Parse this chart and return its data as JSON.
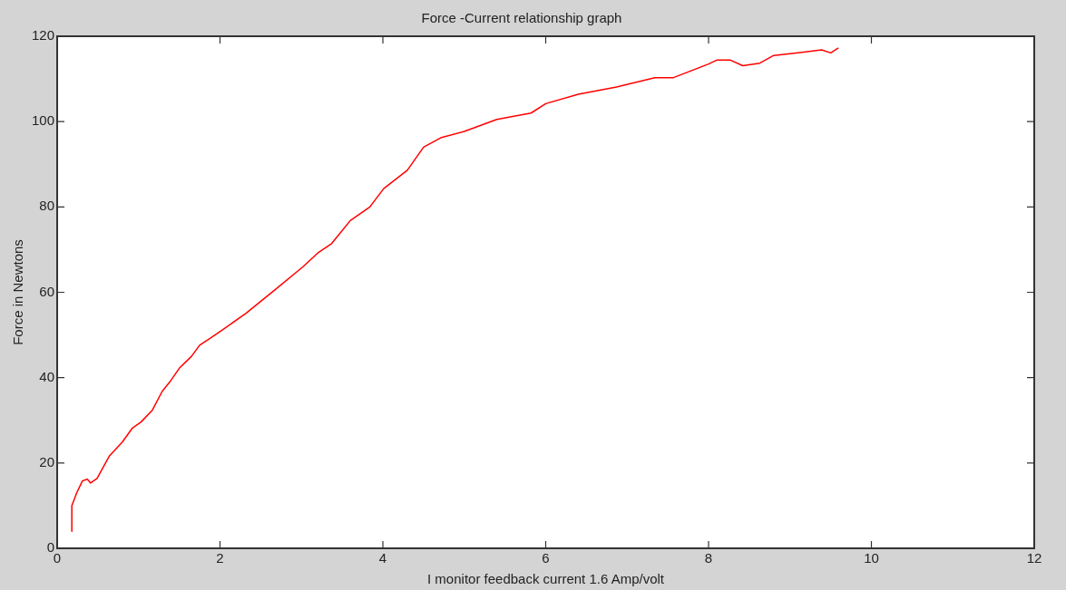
{
  "chart_data": {
    "type": "line",
    "title": "Force -Current relationship graph",
    "xlabel": "I monitor feedback current 1.6 Amp/volt",
    "ylabel": "Force in Newtons",
    "xlim": [
      0,
      12
    ],
    "xticks": [
      0,
      2,
      4,
      6,
      8,
      10,
      12
    ],
    "ylim": [
      0,
      120
    ],
    "yticks": [
      0,
      20,
      40,
      60,
      80,
      100,
      120
    ],
    "grid": false,
    "legend": false,
    "marker": "none",
    "line_style": "solid",
    "series": [
      {
        "color": "#ff0000",
        "x": [
          0.18,
          0.18,
          0.24,
          0.31,
          0.37,
          0.41,
          0.49,
          0.64,
          0.8,
          0.92,
          1.03,
          1.17,
          1.29,
          1.38,
          1.5,
          1.65,
          1.75,
          1.86,
          2.0,
          2.32,
          2.67,
          3.02,
          3.2,
          3.37,
          3.6,
          3.84,
          4.01,
          4.3,
          4.5,
          4.71,
          5.0,
          5.4,
          5.82,
          6.0,
          6.4,
          6.87,
          7.34,
          7.57,
          8.0,
          8.1,
          8.27,
          8.42,
          8.63,
          8.8,
          9.1,
          9.39,
          9.5,
          9.59
        ],
        "values": [
          4,
          10,
          13,
          15.8,
          16.2,
          15.3,
          16.4,
          21.6,
          24.9,
          28.1,
          29.6,
          32.4,
          36.8,
          38.9,
          42.2,
          45,
          47.6,
          49,
          50.8,
          55.1,
          60.5,
          66,
          69.2,
          71.4,
          76.8,
          80,
          84.3,
          88.6,
          94,
          96.2,
          97.7,
          100.5,
          102,
          104.2,
          106.4,
          108.1,
          110.3,
          110.3,
          113.5,
          114.4,
          114.4,
          113.1,
          113.7,
          115.5,
          116.1,
          116.8,
          116.1,
          117.2
        ]
      }
    ]
  }
}
